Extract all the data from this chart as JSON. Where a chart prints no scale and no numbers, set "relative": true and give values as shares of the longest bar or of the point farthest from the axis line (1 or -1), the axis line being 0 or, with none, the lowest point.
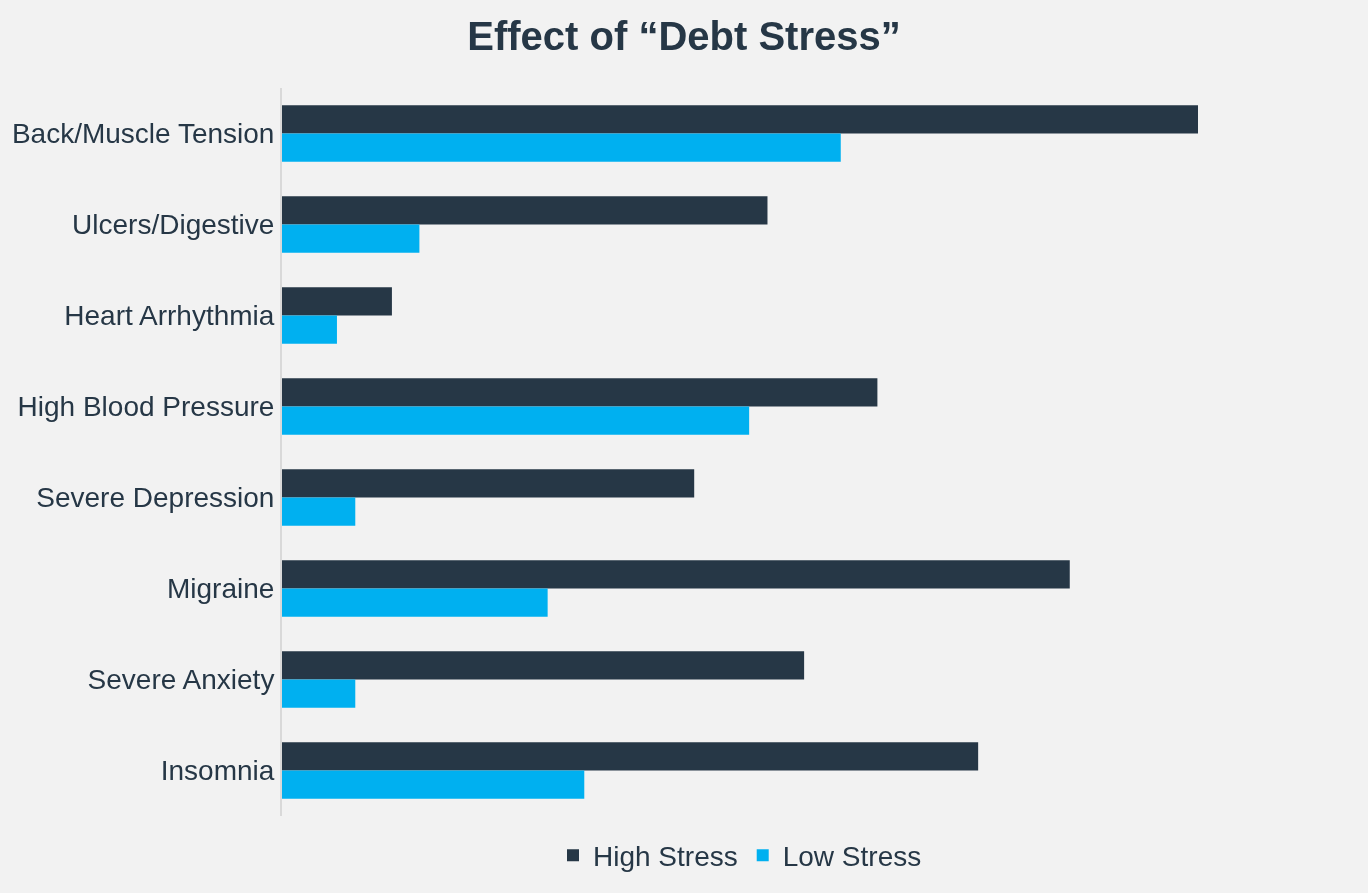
{
  "chart_data": {
    "type": "bar",
    "orientation": "horizontal",
    "relative": true,
    "title": "Effect of “Debt Stress”",
    "categories": [
      "Back/Muscle Tension",
      "Ulcers/Digestive",
      "Heart Arrhythmia",
      "High Blood Pressure",
      "Severe Depression",
      "Migraine",
      "Severe Anxiety",
      "Insomnia"
    ],
    "series": [
      {
        "name": "High Stress",
        "color": "#263746",
        "values": [
          1,
          0.53,
          0.12,
          0.65,
          0.45,
          0.86,
          0.57,
          0.76
        ]
      },
      {
        "name": "Low Stress",
        "color": "#00b0f0",
        "values": [
          0.61,
          0.15,
          0.06,
          0.51,
          0.08,
          0.29,
          0.08,
          0.33
        ]
      }
    ],
    "legend": "bottom"
  }
}
